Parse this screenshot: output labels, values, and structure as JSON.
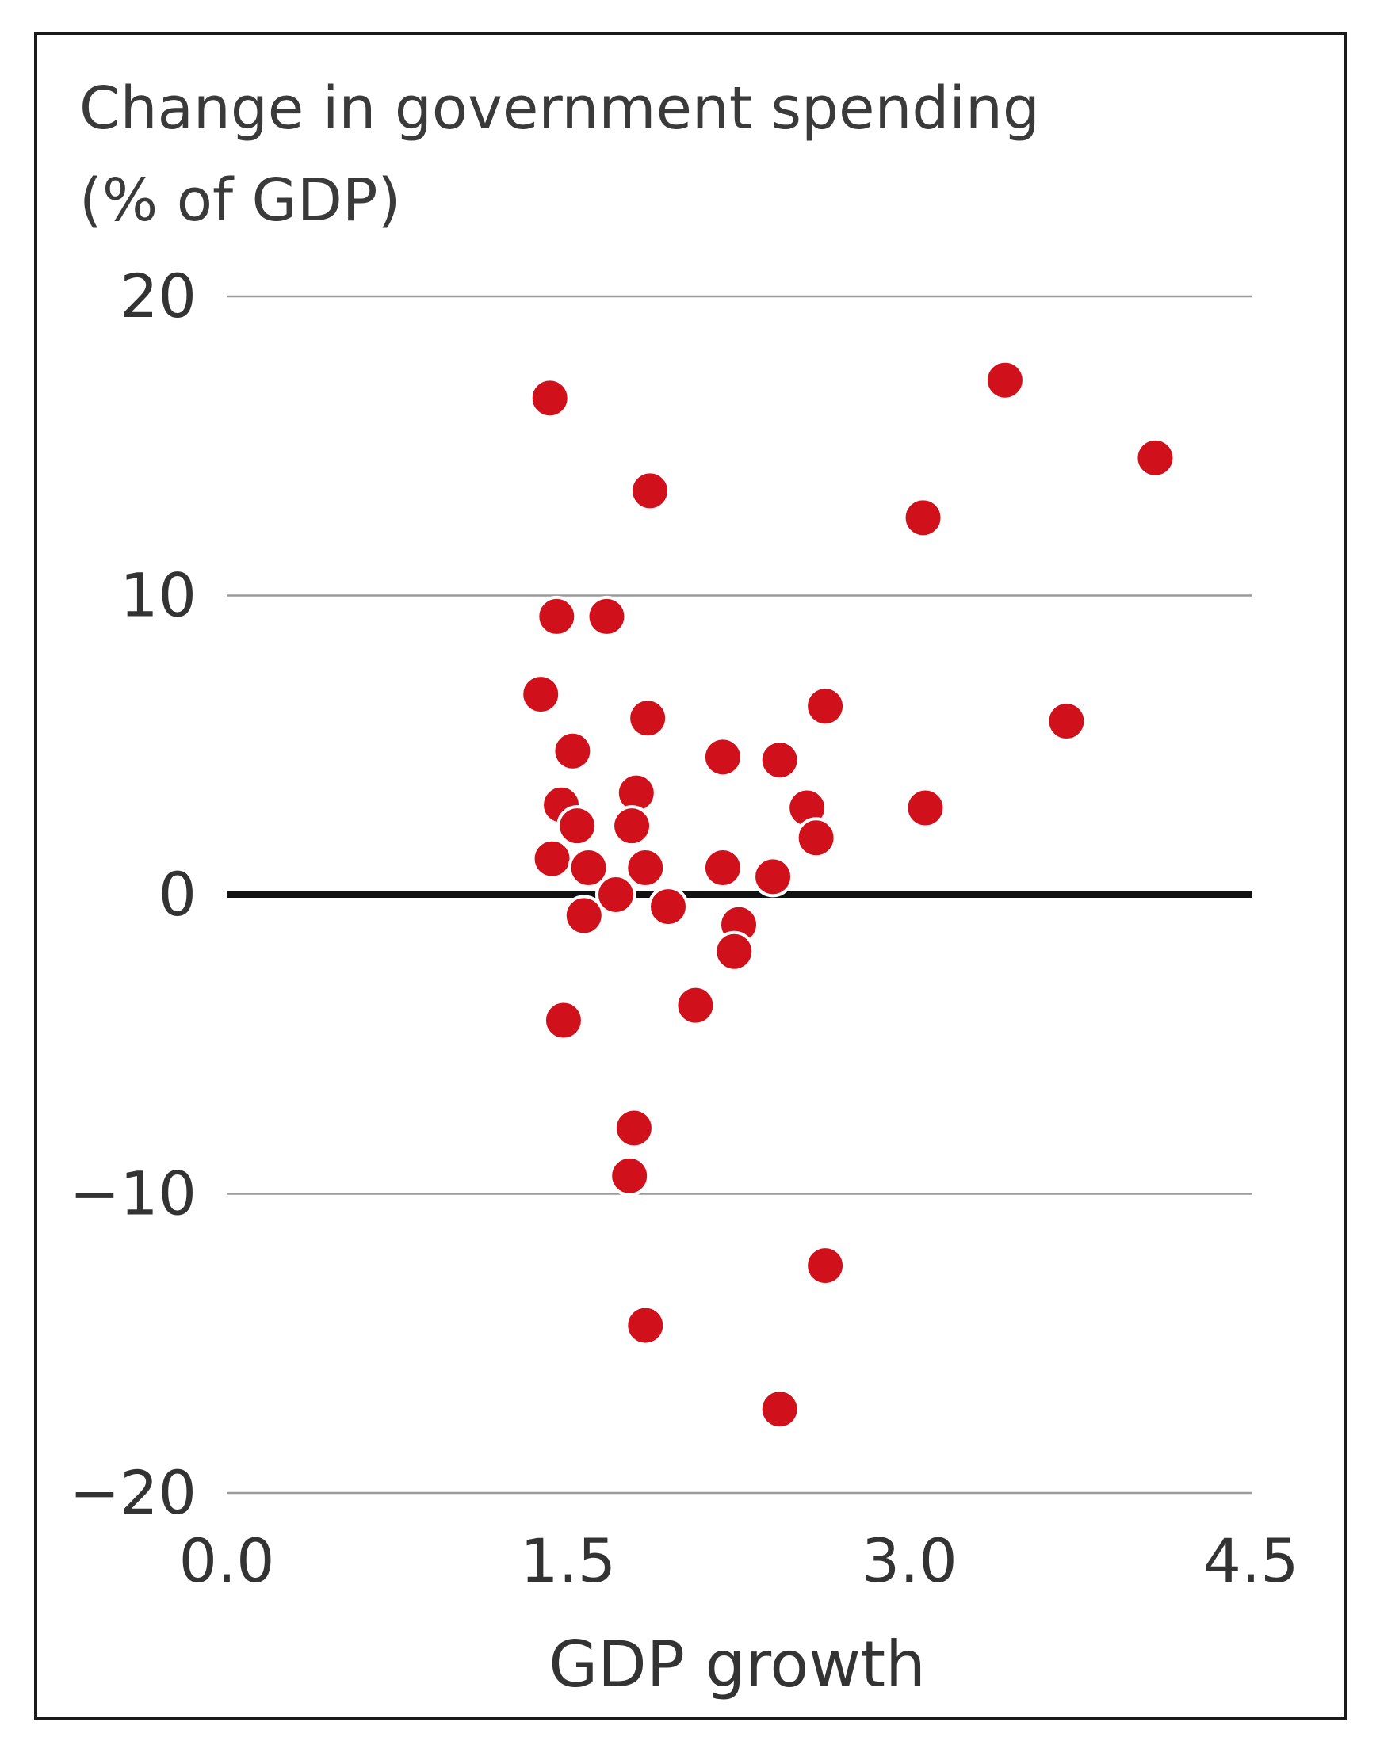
{
  "chart_data": {
    "type": "scatter",
    "title_lines": [
      "Change in government spending",
      "(% of GDP)"
    ],
    "xlabel": "GDP growth",
    "ylabel": "",
    "xlim": [
      0,
      4.5
    ],
    "ylim": [
      -20,
      20
    ],
    "x_ticks": [
      {
        "value": 0.0,
        "label": "0.0"
      },
      {
        "value": 1.5,
        "label": "1.5"
      },
      {
        "value": 3.0,
        "label": "3.0"
      },
      {
        "value": 4.5,
        "label": "4.5"
      }
    ],
    "y_ticks": [
      {
        "value": 20,
        "label": "20"
      },
      {
        "value": 10,
        "label": "10"
      },
      {
        "value": 0,
        "label": "0"
      },
      {
        "value": -10,
        "label": "−10"
      },
      {
        "value": -20,
        "label": "−20"
      }
    ],
    "grid": true,
    "zero_line": true,
    "marker_color": "#d0111b",
    "gridline_color": "#9a9a9a",
    "zero_line_color": "#111111",
    "points": [
      {
        "x": 1.42,
        "y": 16.6
      },
      {
        "x": 1.86,
        "y": 13.5
      },
      {
        "x": 3.42,
        "y": 17.2
      },
      {
        "x": 4.08,
        "y": 14.6
      },
      {
        "x": 3.06,
        "y": 12.6
      },
      {
        "x": 1.45,
        "y": 9.3
      },
      {
        "x": 1.67,
        "y": 9.3
      },
      {
        "x": 1.38,
        "y": 6.7
      },
      {
        "x": 1.85,
        "y": 5.9
      },
      {
        "x": 2.63,
        "y": 6.3
      },
      {
        "x": 3.69,
        "y": 5.8
      },
      {
        "x": 1.52,
        "y": 4.8
      },
      {
        "x": 2.18,
        "y": 4.6
      },
      {
        "x": 2.43,
        "y": 4.5
      },
      {
        "x": 1.47,
        "y": 3.0
      },
      {
        "x": 1.8,
        "y": 3.4
      },
      {
        "x": 2.55,
        "y": 2.9
      },
      {
        "x": 3.07,
        "y": 2.9
      },
      {
        "x": 1.54,
        "y": 2.3
      },
      {
        "x": 1.78,
        "y": 2.3
      },
      {
        "x": 2.59,
        "y": 1.9
      },
      {
        "x": 1.43,
        "y": 1.2
      },
      {
        "x": 1.59,
        "y": 0.9
      },
      {
        "x": 1.84,
        "y": 0.9
      },
      {
        "x": 2.18,
        "y": 0.9
      },
      {
        "x": 2.4,
        "y": 0.6
      },
      {
        "x": 1.71,
        "y": 0.0
      },
      {
        "x": 1.94,
        "y": -0.4
      },
      {
        "x": 1.57,
        "y": -0.7
      },
      {
        "x": 2.25,
        "y": -1.0
      },
      {
        "x": 2.23,
        "y": -1.9
      },
      {
        "x": 2.06,
        "y": -3.7
      },
      {
        "x": 1.48,
        "y": -4.2
      },
      {
        "x": 1.79,
        "y": -7.8
      },
      {
        "x": 1.77,
        "y": -9.4
      },
      {
        "x": 2.63,
        "y": -12.4
      },
      {
        "x": 1.84,
        "y": -14.4
      },
      {
        "x": 2.43,
        "y": -17.2
      }
    ]
  }
}
